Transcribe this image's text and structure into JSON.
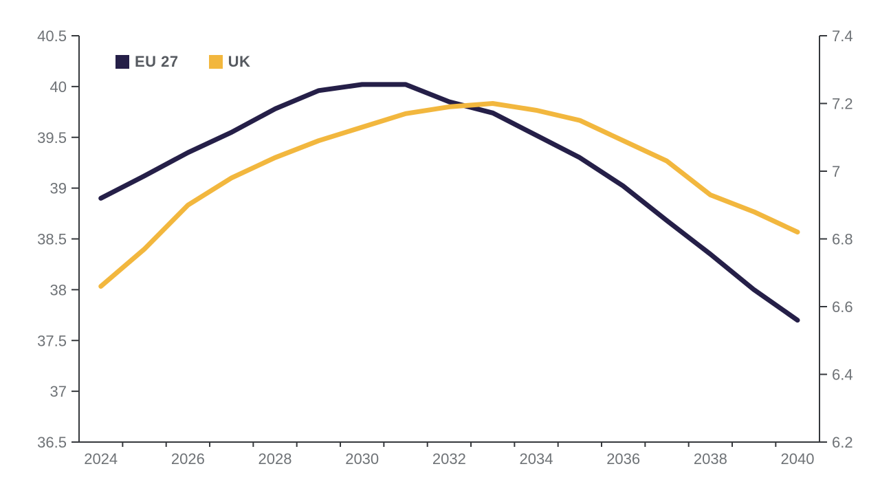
{
  "chart_data": {
    "type": "line",
    "x": [
      2024,
      2025,
      2026,
      2027,
      2028,
      2029,
      2030,
      2031,
      2032,
      2033,
      2034,
      2035,
      2036,
      2037,
      2038,
      2039,
      2040
    ],
    "x_tick_labels": [
      "2024",
      "2026",
      "2028",
      "2030",
      "2032",
      "2034",
      "2036",
      "2038",
      "2040"
    ],
    "series": [
      {
        "name": "EU 27",
        "axis": "left",
        "color": "#251f48",
        "values": [
          38.9,
          39.12,
          39.35,
          39.55,
          39.78,
          39.96,
          40.02,
          40.02,
          39.85,
          39.74,
          39.52,
          39.3,
          39.02,
          38.68,
          38.35,
          38.0,
          37.7
        ]
      },
      {
        "name": "UK",
        "axis": "right",
        "color": "#f2b73e",
        "values": [
          6.66,
          6.77,
          6.9,
          6.98,
          7.04,
          7.09,
          7.13,
          7.17,
          7.19,
          7.2,
          7.18,
          7.15,
          7.09,
          7.03,
          6.93,
          6.88,
          6.82
        ]
      }
    ],
    "left_axis": {
      "min": 36.5,
      "max": 40.5,
      "step": 0.5,
      "tick_labels": [
        "36.5",
        "37",
        "37.5",
        "38",
        "38.5",
        "39",
        "39.5",
        "40",
        "40.5"
      ]
    },
    "right_axis": {
      "min": 6.2,
      "max": 7.4,
      "step": 0.2,
      "tick_labels": [
        "6.2",
        "6.4",
        "6.6",
        "6.8",
        "7",
        "7.2",
        "7.4"
      ]
    },
    "legend_position": "top-left",
    "grid": false,
    "colors": {
      "axis_line": "#35383c",
      "tick_label": "#6e7276",
      "legend_text": "#565a60"
    }
  }
}
